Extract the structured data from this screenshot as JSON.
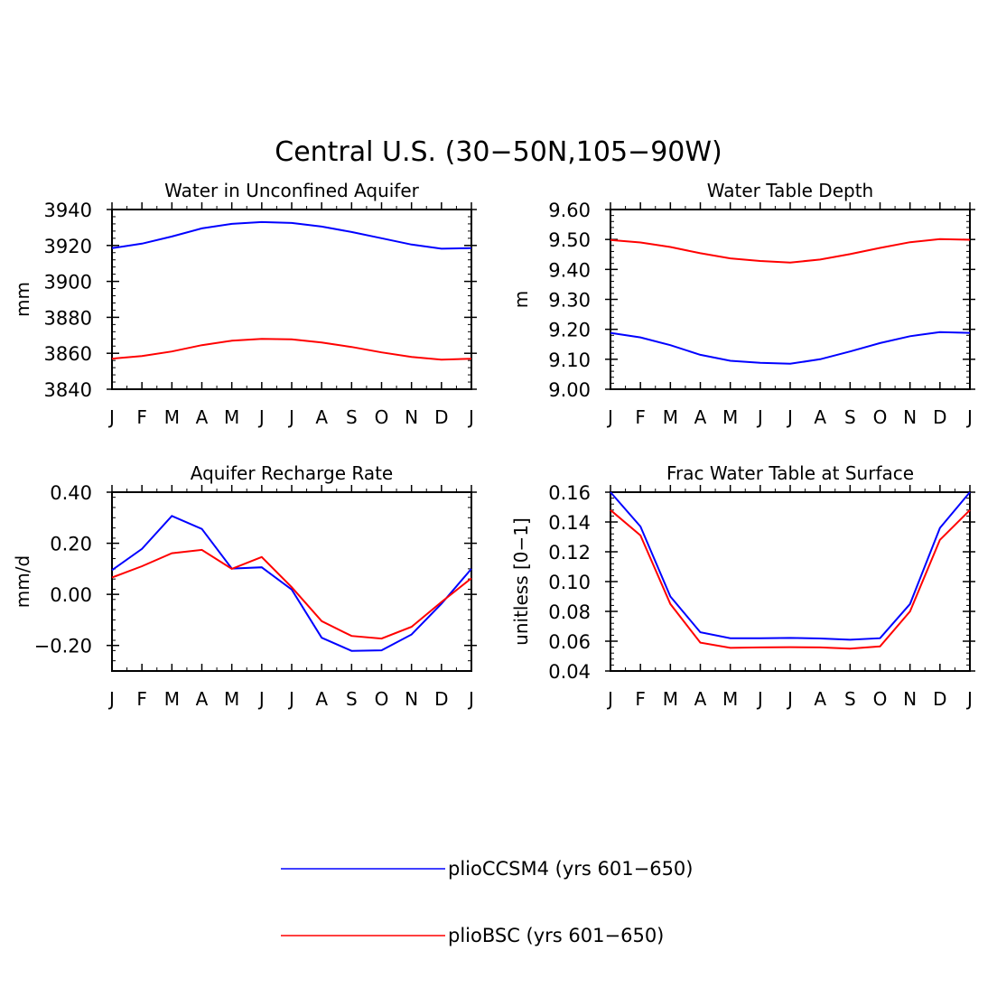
{
  "figure": {
    "title": "Central U.S. (30−50N,105−90W)"
  },
  "legend": [
    {
      "name": "plioCCSM4 (yrs 601−650)",
      "color": "#0000ff"
    },
    {
      "name": "plioBSC (yrs 601−650)",
      "color": "#ff0000"
    }
  ],
  "chart_data": [
    {
      "type": "line",
      "title": "Water in Unconfined Aquifer",
      "ylabel": "mm",
      "xlabel": "",
      "x": [
        "J",
        "F",
        "M",
        "A",
        "M",
        "J",
        "J",
        "A",
        "S",
        "O",
        "N",
        "D",
        "J"
      ],
      "ylim": [
        3840,
        3940
      ],
      "yticks": [
        "3840",
        "3860",
        "3880",
        "3900",
        "3920",
        "3940"
      ],
      "grid": false,
      "series": [
        {
          "name": "plioCCSM4 (yrs 601−650)",
          "color": "#0000ff",
          "values": [
            3918.5,
            3921,
            3925,
            3929.5,
            3932,
            3933,
            3932.5,
            3930.5,
            3927.5,
            3924,
            3920.5,
            3918.2,
            3918.5
          ]
        },
        {
          "name": "plioBSC (yrs 601−650)",
          "color": "#ff0000",
          "values": [
            3857,
            3858.5,
            3861,
            3864.5,
            3867,
            3868,
            3867.8,
            3866,
            3863.5,
            3860.5,
            3858,
            3856.5,
            3857
          ]
        }
      ]
    },
    {
      "type": "line",
      "title": "Water Table Depth",
      "ylabel": "m",
      "xlabel": "",
      "x": [
        "J",
        "F",
        "M",
        "A",
        "M",
        "J",
        "J",
        "A",
        "S",
        "O",
        "N",
        "D",
        "J"
      ],
      "ylim": [
        9.0,
        9.6
      ],
      "yticks": [
        "9.00",
        "9.10",
        "9.20",
        "9.30",
        "9.40",
        "9.50",
        "9.60"
      ],
      "grid": false,
      "series": [
        {
          "name": "plioCCSM4 (yrs 601−650)",
          "color": "#0000ff",
          "values": [
            9.188,
            9.173,
            9.147,
            9.115,
            9.095,
            9.088,
            9.085,
            9.1,
            9.126,
            9.154,
            9.177,
            9.191,
            9.188
          ]
        },
        {
          "name": "plioBSC (yrs 601−650)",
          "color": "#ff0000",
          "values": [
            9.498,
            9.49,
            9.475,
            9.454,
            9.437,
            9.428,
            9.423,
            9.433,
            9.451,
            9.472,
            9.491,
            9.501,
            9.499
          ]
        }
      ]
    },
    {
      "type": "line",
      "title": "Aquifer Recharge Rate",
      "ylabel": "mm/d",
      "xlabel": "",
      "x": [
        "J",
        "F",
        "M",
        "A",
        "M",
        "J",
        "J",
        "A",
        "S",
        "O",
        "N",
        "D",
        "J"
      ],
      "ylim": [
        -0.3,
        0.4
      ],
      "yticks": [
        "−0.20",
        "0.00",
        "0.20",
        "0.40"
      ],
      "ytick_values": [
        -0.2,
        0.0,
        0.2,
        0.4
      ],
      "grid": false,
      "series": [
        {
          "name": "plioCCSM4 (yrs 601−650)",
          "color": "#0000ff",
          "values": [
            0.095,
            0.178,
            0.307,
            0.256,
            0.101,
            0.106,
            0.019,
            -0.17,
            -0.221,
            -0.219,
            -0.157,
            -0.037,
            0.1
          ]
        },
        {
          "name": "plioBSC (yrs 601−650)",
          "color": "#ff0000",
          "values": [
            0.066,
            0.11,
            0.161,
            0.174,
            0.1,
            0.146,
            0.028,
            -0.105,
            -0.163,
            -0.173,
            -0.127,
            -0.03,
            0.063
          ]
        }
      ]
    },
    {
      "type": "line",
      "title": "Frac Water Table at Surface",
      "ylabel": "unitless [0−1]",
      "xlabel": "",
      "x": [
        "J",
        "F",
        "M",
        "A",
        "M",
        "J",
        "J",
        "A",
        "S",
        "O",
        "N",
        "D",
        "J"
      ],
      "ylim": [
        0.04,
        0.16
      ],
      "yticks": [
        "0.04",
        "0.06",
        "0.08",
        "0.10",
        "0.12",
        "0.14",
        "0.16"
      ],
      "grid": false,
      "series": [
        {
          "name": "plioCCSM4 (yrs 601−650)",
          "color": "#0000ff",
          "values": [
            0.16,
            0.137,
            0.09,
            0.066,
            0.062,
            0.062,
            0.0622,
            0.0618,
            0.061,
            0.062,
            0.085,
            0.136,
            0.16
          ]
        },
        {
          "name": "plioBSC (yrs 601−650)",
          "color": "#ff0000",
          "values": [
            0.148,
            0.131,
            0.085,
            0.059,
            0.0555,
            0.0558,
            0.056,
            0.0558,
            0.055,
            0.0565,
            0.08,
            0.128,
            0.148
          ]
        }
      ]
    }
  ]
}
